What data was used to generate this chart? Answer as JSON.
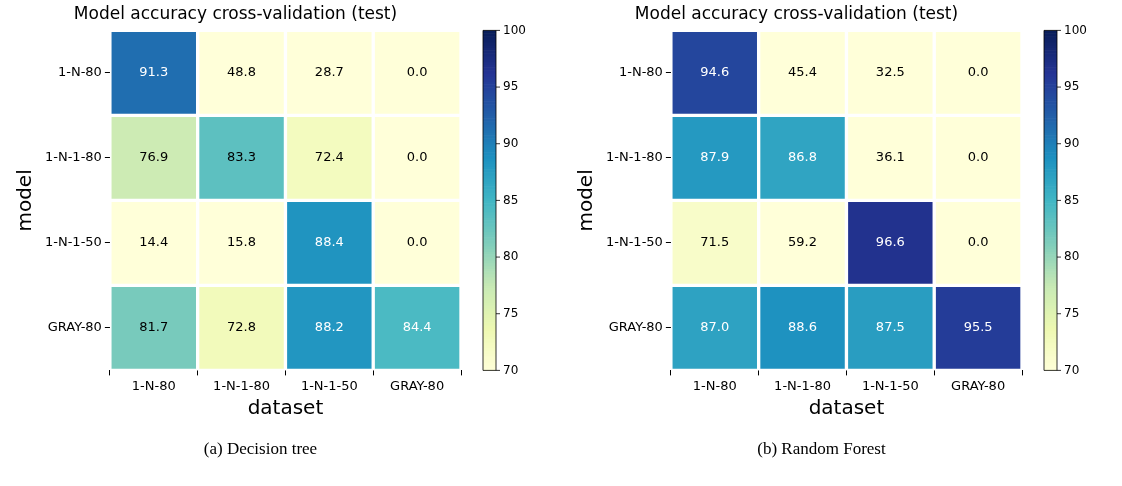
{
  "chart_data": [
    {
      "type": "heatmap",
      "title": "Model accuracy cross-validation (test)",
      "xlabel": "dataset",
      "ylabel": "model",
      "categories": [
        "1-N-80",
        "1-N-1-80",
        "1-N-1-50",
        "GRAY-80"
      ],
      "y_categories": [
        "1-N-80",
        "1-N-1-80",
        "1-N-1-50",
        "GRAY-80"
      ],
      "cells": [
        [
          91.3,
          48.8,
          28.7,
          0.0
        ],
        [
          76.9,
          83.3,
          72.4,
          0.0
        ],
        [
          14.4,
          15.8,
          88.4,
          0.0
        ],
        [
          81.7,
          72.8,
          88.2,
          84.4
        ]
      ],
      "cell_labels": [
        [
          "91.3",
          "48.8",
          "28.7",
          "0.0"
        ],
        [
          "76.9",
          "83.3",
          "72.4",
          "0.0"
        ],
        [
          "14.4",
          "15.8",
          "88.4",
          "0.0"
        ],
        [
          "81.7",
          "72.8",
          "88.2",
          "84.4"
        ]
      ],
      "clim": [
        70,
        100
      ],
      "cticks": [
        70,
        75,
        80,
        85,
        90,
        95,
        100
      ],
      "annotations": [
        "(a) Decision tree"
      ]
    },
    {
      "type": "heatmap",
      "title": "Model accuracy cross-validation (test)",
      "xlabel": "dataset",
      "ylabel": "model",
      "categories": [
        "1-N-80",
        "1-N-1-80",
        "1-N-1-50",
        "GRAY-80"
      ],
      "y_categories": [
        "1-N-80",
        "1-N-1-80",
        "1-N-1-50",
        "GRAY-80"
      ],
      "cells": [
        [
          94.6,
          45.4,
          32.5,
          0.0
        ],
        [
          87.9,
          86.8,
          36.1,
          0.0
        ],
        [
          71.5,
          59.2,
          96.6,
          0.0
        ],
        [
          87.0,
          88.6,
          87.5,
          95.5
        ]
      ],
      "cell_labels": [
        [
          "94.6",
          "45.4",
          "32.5",
          "0.0"
        ],
        [
          "87.9",
          "86.8",
          "36.1",
          "0.0"
        ],
        [
          "71.5",
          "59.2",
          "96.6",
          "0.0"
        ],
        [
          "87.0",
          "88.6",
          "87.5",
          "95.5"
        ]
      ],
      "clim": [
        70,
        100
      ],
      "cticks": [
        70,
        75,
        80,
        85,
        90,
        95,
        100
      ],
      "annotations": [
        "(b) Random Forest"
      ]
    }
  ]
}
